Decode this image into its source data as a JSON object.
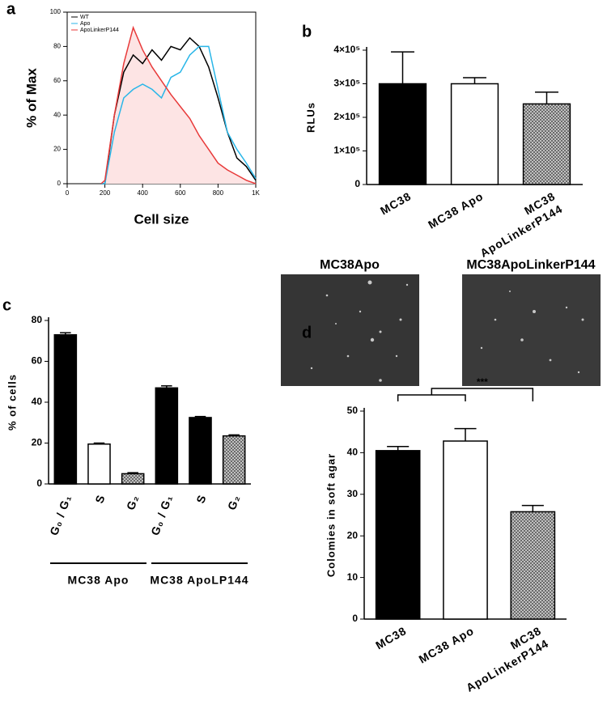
{
  "chart_data": [
    {
      "type": "line",
      "label": "a",
      "xlabel": "Cell size",
      "ylabel": "% of Max",
      "x": [
        180,
        200,
        250,
        300,
        350,
        400,
        450,
        500,
        550,
        600,
        650,
        700,
        750,
        800,
        850,
        900,
        950,
        1000
      ],
      "series": [
        {
          "name": "WT",
          "color": "#000000",
          "values": [
            0,
            0,
            40,
            65,
            75,
            70,
            78,
            72,
            80,
            78,
            85,
            80,
            68,
            50,
            30,
            15,
            10,
            2
          ]
        },
        {
          "name": "Apo",
          "color": "#29b6e8",
          "values": [
            0,
            0,
            30,
            50,
            55,
            58,
            55,
            50,
            62,
            65,
            75,
            80,
            80,
            55,
            30,
            20,
            12,
            3
          ]
        },
        {
          "name": "ApoLinkerP144",
          "color": "#e83a3a",
          "fill": "#fde4e4",
          "values": [
            0,
            2,
            40,
            70,
            91,
            78,
            68,
            60,
            52,
            45,
            38,
            28,
            20,
            12,
            8,
            5,
            2,
            0
          ]
        }
      ],
      "xlim": [
        0,
        1000
      ],
      "xticks": [
        0,
        200,
        400,
        600,
        800,
        {
          "value": 1000,
          "label": "1K"
        }
      ],
      "ylim": [
        0,
        100
      ],
      "yticks": [
        0,
        20,
        40,
        60,
        80,
        100
      ],
      "legend": "top-left"
    },
    {
      "type": "bar",
      "label": "b",
      "ylabel": "RLUs",
      "categories": [
        "MC38",
        "MC38 Apo",
        [
          "MC38",
          "ApoLinkerP144"
        ]
      ],
      "values": [
        300000,
        300000,
        240000
      ],
      "errors": [
        95000,
        18000,
        35000
      ],
      "colors": [
        "#000000",
        "#ffffff",
        "#8a8a8a"
      ],
      "fills": [
        "solid",
        "solid",
        "hatch"
      ],
      "ylim": [
        0,
        400000
      ],
      "yticks": [
        0,
        {
          "value": 100000,
          "label": "1×10⁵"
        },
        {
          "value": 200000,
          "label": "2×10⁵"
        },
        {
          "value": 300000,
          "label": "3×10⁵"
        },
        {
          "value": 400000,
          "label": "4×10⁵"
        }
      ]
    },
    {
      "type": "bar",
      "label": "c",
      "ylabel": "% of cells",
      "categories": [
        "G₀ / G₁",
        "S",
        "G₂",
        "G₀ / G₁",
        "S",
        "G₂"
      ],
      "groups": [
        "MC38 Apo",
        "MC38 ApoLP144"
      ],
      "values": [
        73,
        19.5,
        5,
        47,
        32.5,
        23.5
      ],
      "errors": [
        1,
        0.5,
        0.5,
        1,
        0.5,
        0.5
      ],
      "colors": [
        "#000000",
        "#ffffff",
        "#8a8a8a",
        "#000000",
        "#000000",
        "#8a8a8a"
      ],
      "fills": [
        "solid",
        "solid",
        "hatch",
        "solid",
        "solid",
        "hatch"
      ],
      "ylim": [
        0,
        80
      ],
      "yticks": [
        0,
        20,
        40,
        60,
        80
      ]
    },
    {
      "type": "bar",
      "label": "d",
      "ylabel": "Colomies in soft agar",
      "image_titles": [
        "MC38Apo",
        "MC38ApoLinkerP144"
      ],
      "annotation": "***",
      "categories": [
        "MC38",
        "MC38 Apo",
        [
          "MC38",
          "ApoLinkerP144"
        ]
      ],
      "values": [
        40.5,
        42.8,
        25.8
      ],
      "errors": [
        1,
        3,
        1.5
      ],
      "colors": [
        "#000000",
        "#ffffff",
        "#8a8a8a"
      ],
      "fills": [
        "solid",
        "solid",
        "hatch"
      ],
      "ylim": [
        0,
        50
      ],
      "yticks": [
        0,
        10,
        20,
        30,
        40,
        50
      ]
    }
  ]
}
